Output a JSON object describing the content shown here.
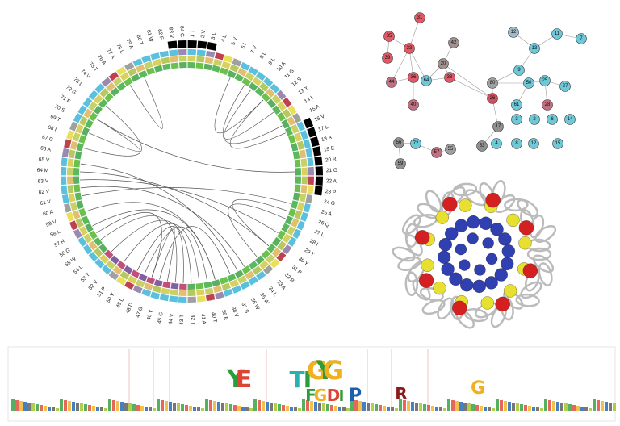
{
  "circos": {
    "residues": [
      "1 T",
      "2 V",
      "3 L",
      "4 L",
      "5 V",
      "6 I",
      "7 V",
      "8 L",
      "9 L",
      "10 A",
      "11 G",
      "12 S",
      "13 Y",
      "14 L",
      "15 A",
      "16 V",
      "17 L",
      "18 A",
      "19 E",
      "20 R",
      "21 G",
      "22 A",
      "23 P",
      "24 G",
      "25 A",
      "26 Q",
      "27 L",
      "28 I",
      "29 T",
      "30 Y",
      "31 P",
      "32 R",
      "33 A",
      "34 L",
      "35 W",
      "36 W",
      "37 S",
      "38 V",
      "39 E",
      "40 T",
      "41 A",
      "42 T",
      "43 T",
      "44 V",
      "45 G",
      "46 Y",
      "47 G",
      "48 D",
      "49 L",
      "50 Y",
      "51 P",
      "52 V",
      "53 T",
      "54 L",
      "55 W",
      "56 G",
      "57 R",
      "58 L",
      "59 V",
      "60 A",
      "61 V",
      "62 V",
      "63 V",
      "64 M",
      "65 V",
      "66 A",
      "67 G",
      "68 I",
      "69 T",
      "70 S",
      "71 F",
      "72 G",
      "73 L",
      "74 V",
      "75 T",
      "76 A",
      "77 A",
      "78 L",
      "79 A",
      "80 T",
      "81 W",
      "82 F",
      "83 V",
      "84 G"
    ]
  },
  "network": {
    "nodes": [
      "31",
      "35",
      "33",
      "42",
      "39",
      "20",
      "44",
      "36",
      "64",
      "38",
      "40",
      "26",
      "12",
      "11",
      "7",
      "13",
      "9",
      "80",
      "50",
      "25",
      "27",
      "61",
      "28",
      "3",
      "2",
      "6",
      "14",
      "17",
      "4",
      "8",
      "12",
      "15",
      "56",
      "72",
      "57",
      "55",
      "53",
      "59"
    ]
  },
  "logo": {
    "letters": [
      "Y",
      "E",
      "T",
      "I",
      "G",
      "Y",
      "G",
      "F",
      "G",
      "D",
      "I",
      "P",
      "R",
      "G"
    ]
  }
}
